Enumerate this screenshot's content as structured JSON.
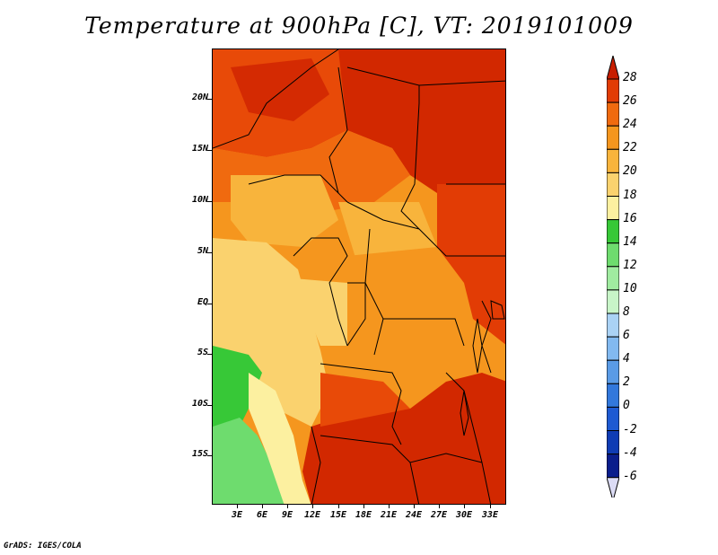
{
  "title": "Temperature at 900hPa [C], VT: 2019101009",
  "footer": "GrADS: IGES/COLA",
  "map": {
    "lat_labels": [
      "20N",
      "15N",
      "10N",
      "5N",
      "EQ",
      "5S",
      "10S",
      "15S"
    ],
    "lon_labels": [
      "3E",
      "6E",
      "9E",
      "12E",
      "15E",
      "18E",
      "21E",
      "24E",
      "27E",
      "30E",
      "33E"
    ]
  },
  "colorbar": {
    "labels": [
      "28",
      "26",
      "24",
      "22",
      "20",
      "18",
      "16",
      "14",
      "12",
      "10",
      "8",
      "6",
      "4",
      "2",
      "0",
      "-2",
      "-4",
      "-6"
    ],
    "colors": [
      "#c81e00",
      "#e23c05",
      "#f06a0f",
      "#f5961e",
      "#f8b43c",
      "#fad26e",
      "#fcf0a0",
      "#37c837",
      "#6edc6e",
      "#a0eba0",
      "#c8f5c8",
      "#aad2f5",
      "#82b9f0",
      "#5a9be6",
      "#3278dc",
      "#1e5ad2",
      "#0f3cb4",
      "#0a1e8c",
      "#dcdcf5"
    ]
  }
}
